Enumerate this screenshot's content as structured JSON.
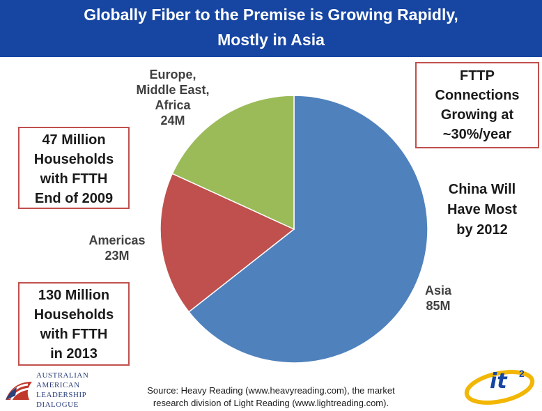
{
  "header": {
    "title_line1": "Globally Fiber to the Premise is Growing Rapidly,",
    "title_line2": "Mostly in Asia"
  },
  "callouts": {
    "left_top": [
      "47 Million",
      "Households",
      "with FTTH",
      "End of 2009"
    ],
    "left_bottom": [
      "130 Million",
      "Households",
      "with FTTH",
      "in 2013"
    ],
    "right_top": [
      "FTTP",
      "Connections",
      "Growing at",
      "~30%/year"
    ]
  },
  "china_note": [
    "China Will",
    "Have Most",
    "by 2012"
  ],
  "chart_data": {
    "type": "pie",
    "title": "",
    "slices": [
      {
        "label_lines": [
          "Asia",
          "85M"
        ],
        "value": 85,
        "color": "#4f81bd"
      },
      {
        "label_lines": [
          "Americas",
          "23M"
        ],
        "value": 23,
        "color": "#c0504d"
      },
      {
        "label_lines": [
          "Europe,",
          "Middle East,",
          "Africa",
          "24M"
        ],
        "value": 24,
        "color": "#9bbb59"
      }
    ]
  },
  "source": {
    "line1": "Source: Heavy Reading (www.heavyreading.com), the market",
    "line2": "research division of Light Reading (www.lightreading.com)."
  },
  "logos": {
    "left_text": [
      "AUSTRALIAN",
      "AMERICAN",
      "LEADERSHIP",
      "DIALOGUE"
    ],
    "right_text": "it",
    "right_superscript": "2"
  }
}
